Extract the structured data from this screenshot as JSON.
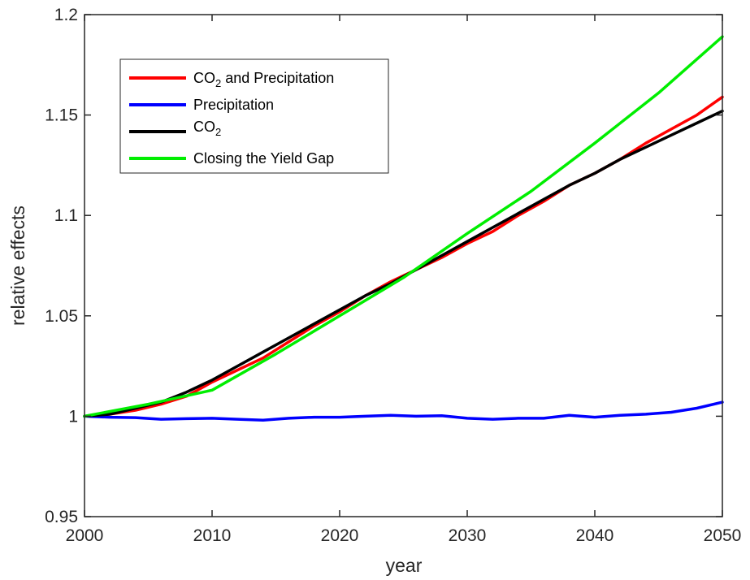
{
  "chart_data": {
    "type": "line",
    "title": "",
    "xlabel": "year",
    "ylabel": "relative effects",
    "xlim": [
      2000,
      2050
    ],
    "ylim": [
      0.95,
      1.2
    ],
    "xticks": [
      2000,
      2010,
      2020,
      2030,
      2040,
      2050
    ],
    "yticks": [
      0.95,
      1,
      1.05,
      1.1,
      1.15,
      1.2
    ],
    "xtick_labels": [
      "2000",
      "2010",
      "2020",
      "2030",
      "2040",
      "2050"
    ],
    "ytick_labels": [
      "0.95",
      "1",
      "1.05",
      "1.1",
      "1.15",
      "1.2"
    ],
    "grid": false,
    "legend_position": "top-left",
    "series": [
      {
        "name": "CO2 and Precipitation",
        "name_main": "CO",
        "name_sub": "2",
        "name_rest": " and Precipitation",
        "color": "#ff0000",
        "x": [
          2000,
          2002,
          2004,
          2006,
          2008,
          2010,
          2012,
          2014,
          2016,
          2018,
          2020,
          2022,
          2024,
          2026,
          2028,
          2030,
          2032,
          2034,
          2036,
          2038,
          2040,
          2042,
          2044,
          2046,
          2048,
          2050
        ],
        "y": [
          1.0,
          1.001,
          1.003,
          1.006,
          1.01,
          1.017,
          1.023,
          1.029,
          1.037,
          1.045,
          1.052,
          1.06,
          1.067,
          1.073,
          1.079,
          1.086,
          1.092,
          1.1,
          1.107,
          1.115,
          1.121,
          1.128,
          1.136,
          1.143,
          1.15,
          1.159
        ]
      },
      {
        "name": "Precipitation",
        "color": "#0000ff",
        "x": [
          2000,
          2002,
          2004,
          2006,
          2008,
          2010,
          2012,
          2014,
          2016,
          2018,
          2020,
          2022,
          2024,
          2026,
          2028,
          2030,
          2032,
          2034,
          2036,
          2038,
          2040,
          2042,
          2044,
          2046,
          2048,
          2050
        ],
        "y": [
          1.0,
          0.9995,
          0.9993,
          0.9985,
          0.9988,
          0.999,
          0.9985,
          0.998,
          0.999,
          0.9995,
          0.9995,
          1.0,
          1.0005,
          1.0,
          1.0003,
          0.999,
          0.9985,
          0.999,
          0.999,
          1.0005,
          0.9995,
          1.0005,
          1.001,
          1.002,
          1.004,
          1.007
        ]
      },
      {
        "name": "CO2",
        "name_main": "CO",
        "name_sub": "2",
        "name_rest": "",
        "color": "#000000",
        "x": [
          2000,
          2002,
          2004,
          2006,
          2008,
          2010,
          2012,
          2014,
          2016,
          2018,
          2020,
          2022,
          2024,
          2026,
          2028,
          2030,
          2032,
          2034,
          2036,
          2038,
          2040,
          2042,
          2044,
          2046,
          2048,
          2050
        ],
        "y": [
          1.0,
          1.001,
          1.004,
          1.007,
          1.012,
          1.018,
          1.025,
          1.032,
          1.039,
          1.046,
          1.053,
          1.06,
          1.066,
          1.073,
          1.08,
          1.087,
          1.094,
          1.101,
          1.108,
          1.115,
          1.121,
          1.128,
          1.134,
          1.14,
          1.146,
          1.152
        ]
      },
      {
        "name": "Closing the Yield Gap",
        "color": "#00ee00",
        "x": [
          2000,
          2005,
          2010,
          2015,
          2020,
          2025,
          2030,
          2035,
          2040,
          2045,
          2050
        ],
        "y": [
          1.0,
          1.006,
          1.013,
          1.031,
          1.05,
          1.069,
          1.091,
          1.112,
          1.136,
          1.161,
          1.189
        ]
      }
    ]
  }
}
